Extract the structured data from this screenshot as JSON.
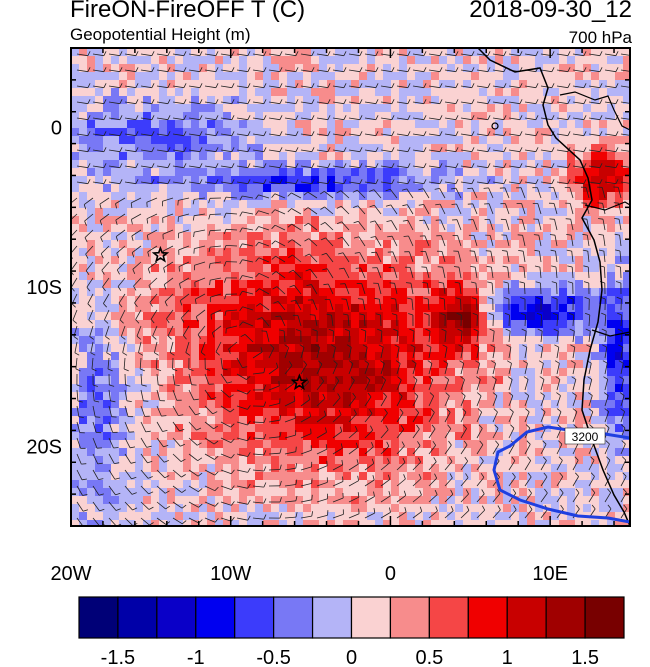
{
  "titles": {
    "main": "FireON-FireOFF T (C)",
    "sub": "Geopotential Height (m)",
    "date": "2018-09-30_12",
    "level": "700 hPa"
  },
  "map": {
    "lon_range": [
      -20,
      15
    ],
    "lat_range": [
      -25,
      5
    ],
    "x_ticks": [
      {
        "value": -20,
        "label": "20W"
      },
      {
        "value": -10,
        "label": "10W"
      },
      {
        "value": 0,
        "label": "0"
      },
      {
        "value": 10,
        "label": "10E"
      }
    ],
    "y_ticks": [
      {
        "value": 0,
        "label": "0"
      },
      {
        "value": -10,
        "label": "10S"
      },
      {
        "value": -20,
        "label": "20S"
      }
    ],
    "contour_label": "3200",
    "contour_color": "#1f3fe0",
    "markers": [
      {
        "lon": -14.4,
        "lat": -8.0,
        "symbol": "star"
      },
      {
        "lon": -5.7,
        "lat": -16.0,
        "symbol": "star"
      }
    ]
  },
  "colorbar": {
    "colors": [
      "#000077",
      "#0000a8",
      "#0a00c8",
      "#0000f0",
      "#3c3cfb",
      "#7878f5",
      "#b4b4f7",
      "#fad2d2",
      "#f78c8c",
      "#f54646",
      "#f00000",
      "#c80000",
      "#a00000",
      "#780000"
    ],
    "tick_labels": [
      "-1.5",
      "-1",
      "-0.5",
      "0",
      "0.5",
      "1",
      "1.5"
    ]
  }
}
